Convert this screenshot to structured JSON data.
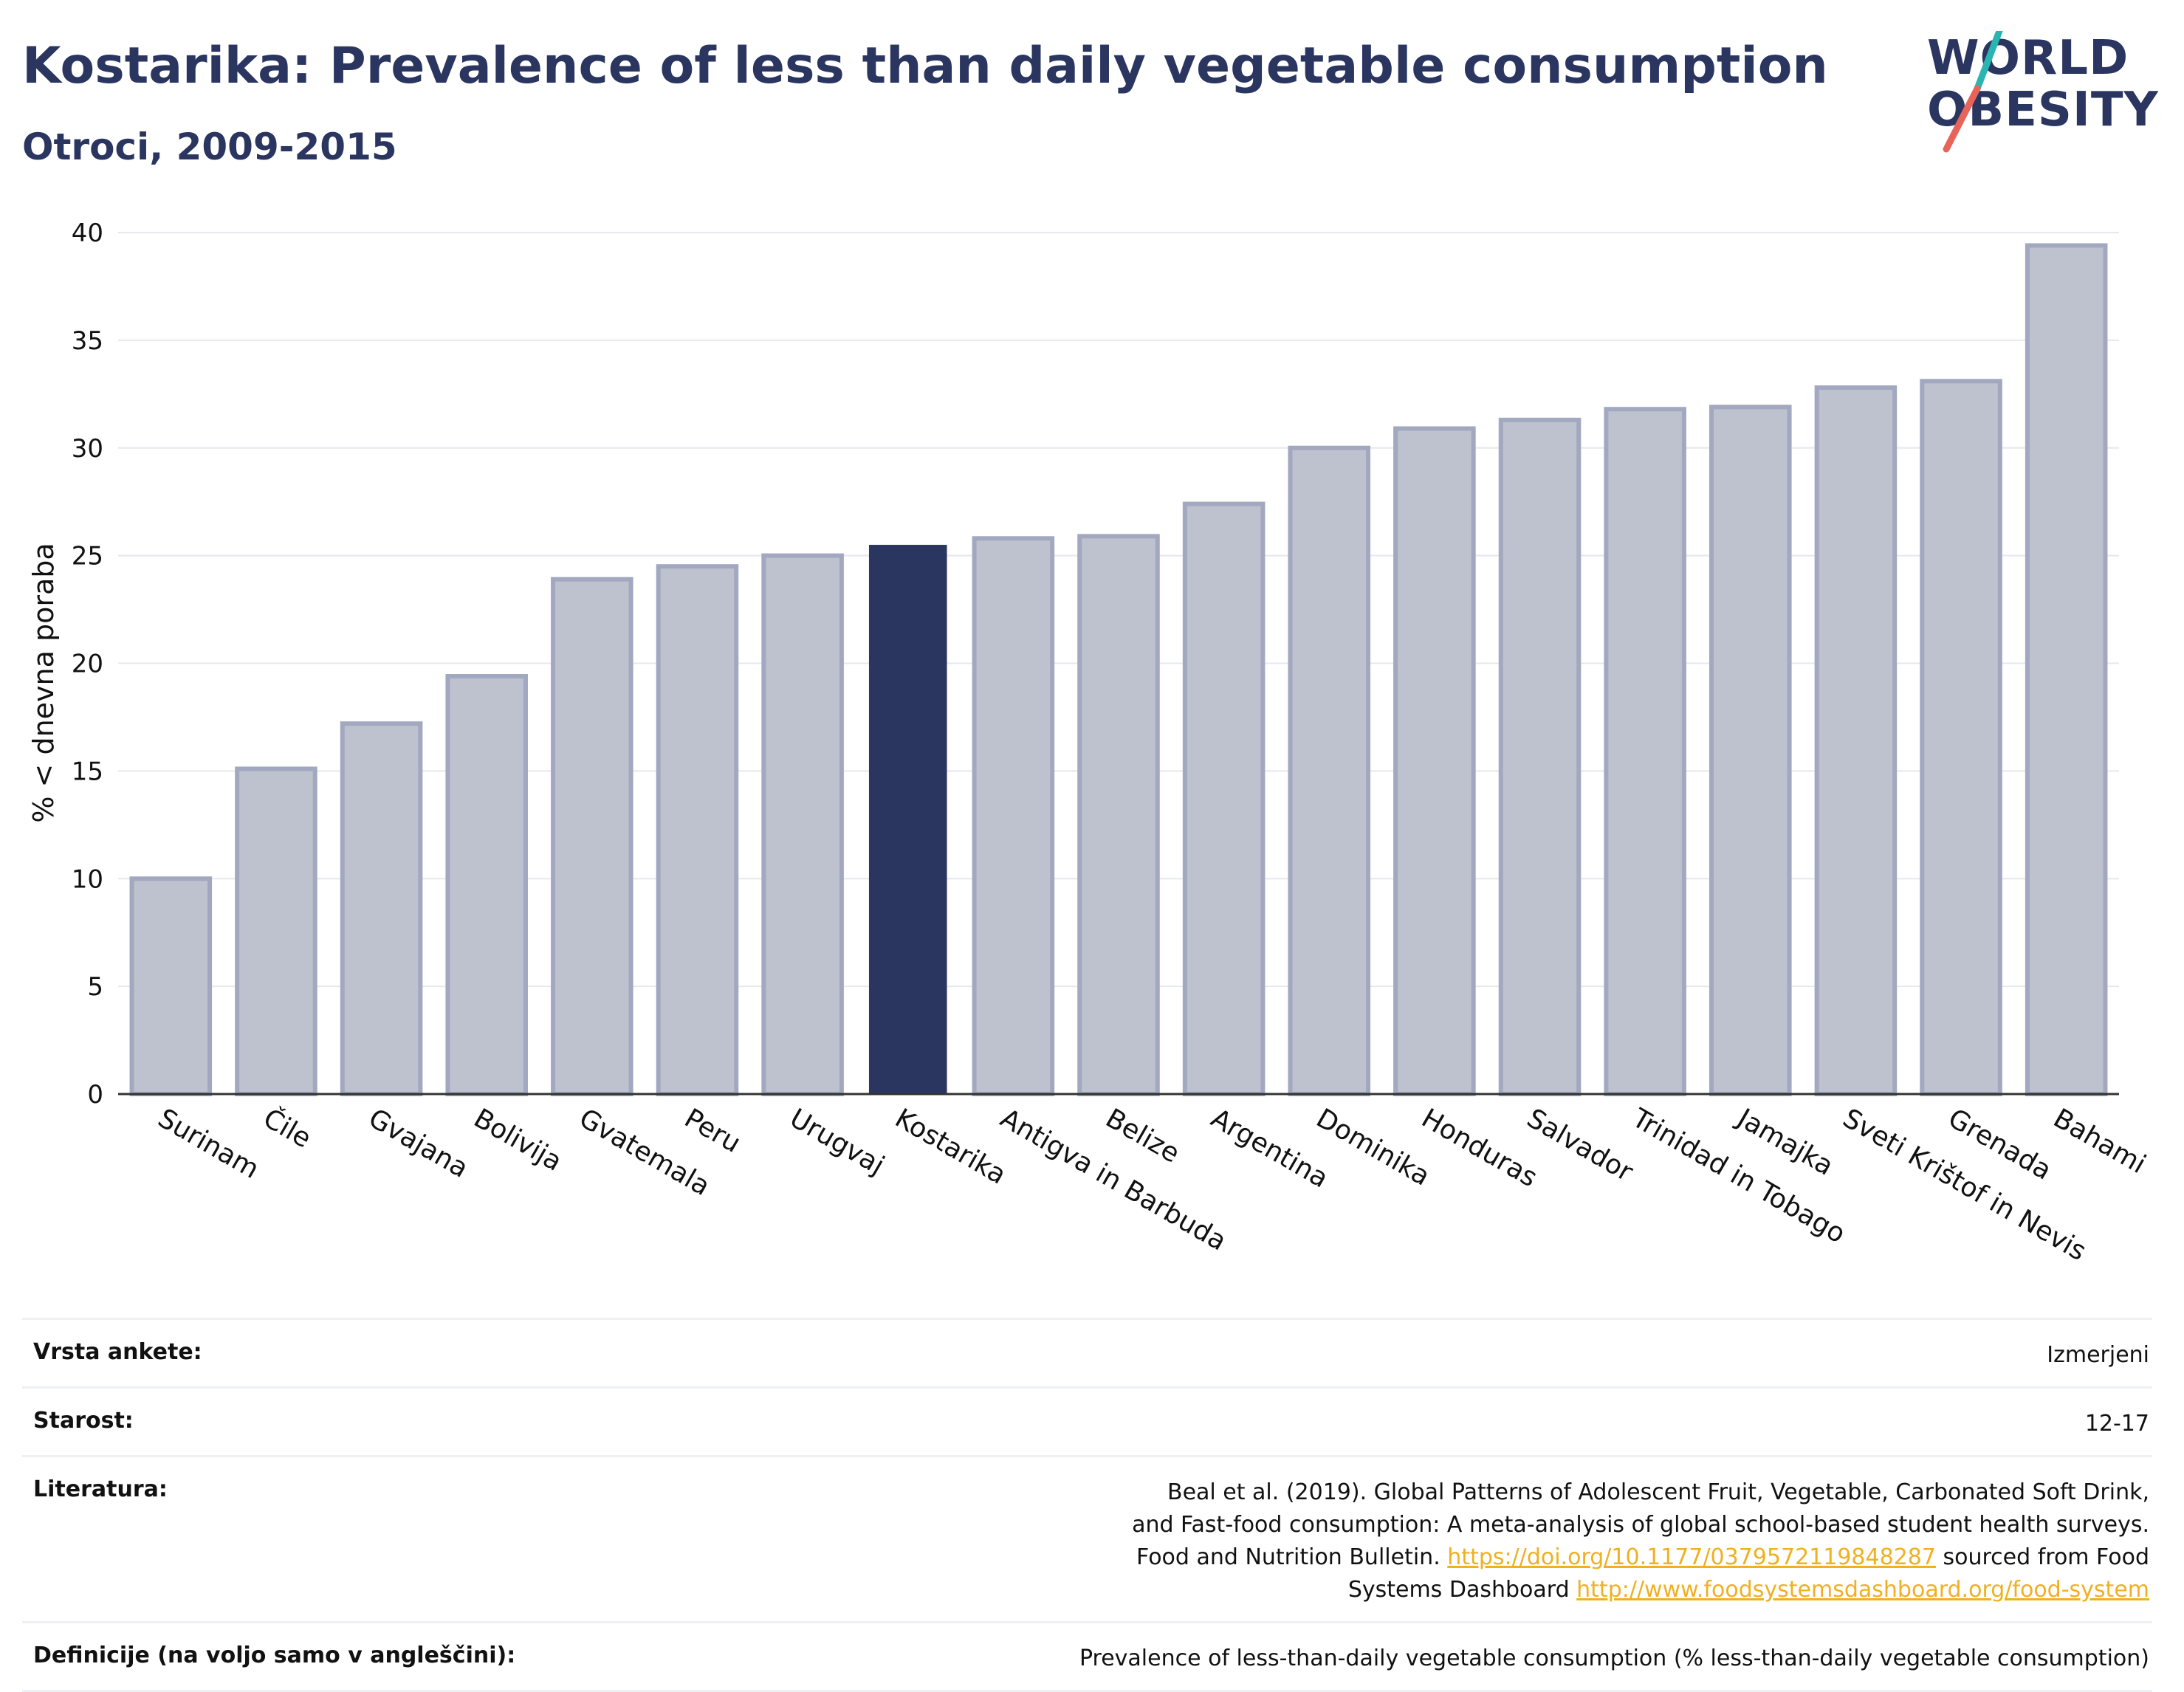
{
  "header": {
    "title": "Kostarika: Prevalence of less than daily vegetable consumption",
    "subtitle": "Otroci, 2009-2015"
  },
  "logo": {
    "line1": "WORLD",
    "line2": "OBESITY",
    "colors": {
      "text": "#2a3560",
      "slash_top": "#2bb5b0",
      "slash_bottom": "#e8645a"
    }
  },
  "chart_data": {
    "type": "bar",
    "ylabel": "% < dnevna poraba",
    "xlabel": "",
    "ylim": [
      0,
      40
    ],
    "yticks": [
      0,
      5,
      10,
      15,
      20,
      25,
      30,
      35,
      40
    ],
    "grid": true,
    "highlight": "Kostarika",
    "colors": {
      "bar": "#bec1ce",
      "bar_edge": "#a2a8bf",
      "highlight": "#2a3560"
    },
    "categories": [
      "Surinam",
      "Čile",
      "Gvajana",
      "Bolivija",
      "Gvatemala",
      "Peru",
      "Urugvaj",
      "Kostarika",
      "Antigva in Barbuda",
      "Belize",
      "Argentina",
      "Dominika",
      "Honduras",
      "Salvador",
      "Trinidad in Tobago",
      "Jamajka",
      "Sveti Krištof in Nevis",
      "Grenada",
      "Bahami"
    ],
    "values": [
      10.0,
      15.1,
      17.2,
      19.4,
      23.9,
      24.5,
      25.0,
      25.5,
      25.8,
      25.9,
      27.4,
      30.0,
      30.9,
      31.3,
      31.8,
      31.9,
      32.8,
      33.1,
      39.4
    ]
  },
  "meta": {
    "survey_type_label": "Vrsta ankete:",
    "survey_type_value": "Izmerjeni",
    "age_label": "Starost:",
    "age_value": "12-17",
    "references_label": "Literatura:",
    "references_text1": "Beal et al. (2019). Global Patterns of Adolescent Fruit, Vegetable, Carbonated Soft Drink, and Fast-food consumption: A meta-analysis of global school-based student health surveys. Food and Nutrition Bulletin.",
    "references_link1": "https://doi.org/10.1177/0379572119848287",
    "references_text2": "sourced from Food Systems Dashboard",
    "references_link2": "http://www.foodsystemsdashboard.org/food-system",
    "definitions_label": "Definicije (na voljo samo v angleščini):",
    "definitions_value": "Prevalence of less-than-daily vegetable consumption (% less-than-daily vegetable consumption)"
  }
}
